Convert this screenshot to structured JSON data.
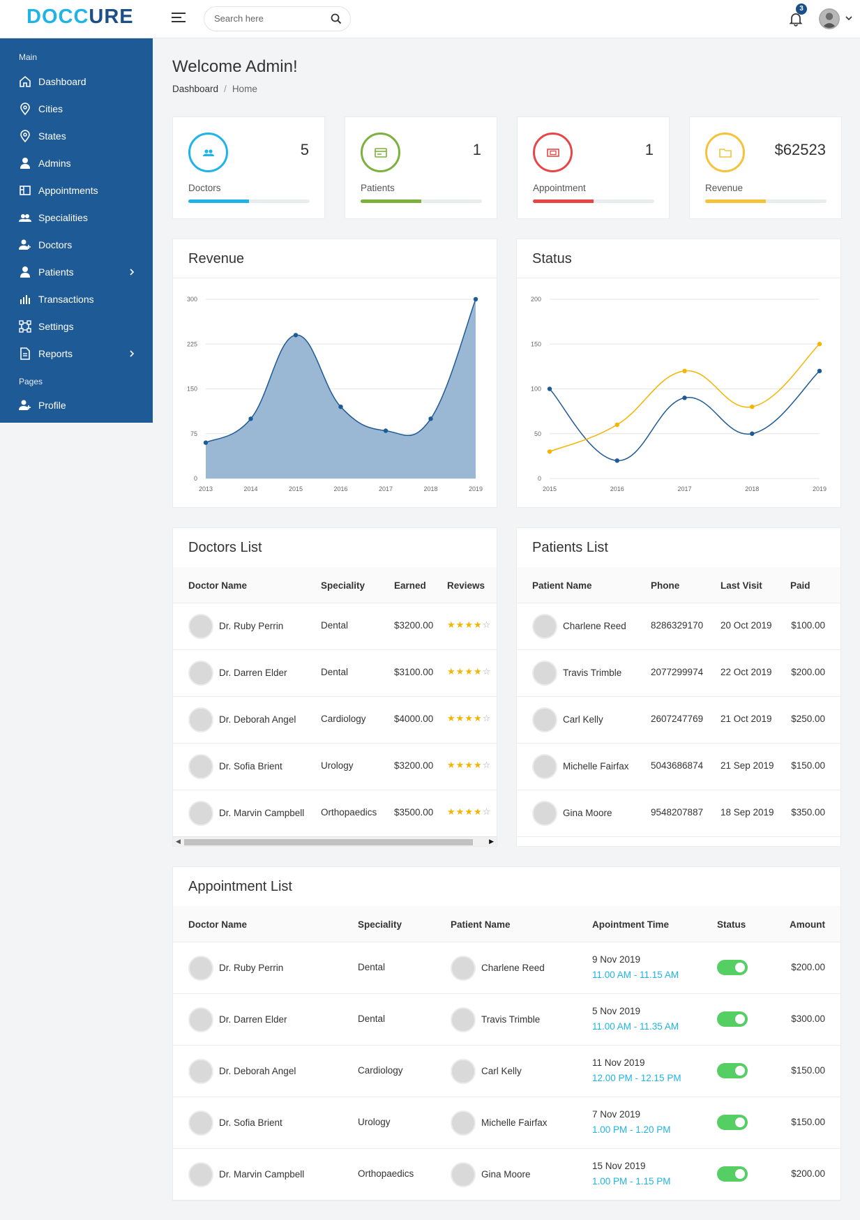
{
  "header": {
    "logo_part1": "DOCC",
    "logo_part2": "URE",
    "search_placeholder": "Search here",
    "notification_count": "3"
  },
  "sidebar": {
    "section_main": "Main",
    "section_pages": "Pages",
    "items": [
      {
        "label": "Dashboard",
        "icon": "home-icon"
      },
      {
        "label": "Cities",
        "icon": "map-pin-icon"
      },
      {
        "label": "States",
        "icon": "map-pin-icon"
      },
      {
        "label": "Admins",
        "icon": "user-icon"
      },
      {
        "label": "Appointments",
        "icon": "layout-icon"
      },
      {
        "label": "Specialities",
        "icon": "users-icon"
      },
      {
        "label": "Doctors",
        "icon": "user-plus-icon"
      },
      {
        "label": "Patients",
        "icon": "user-icon"
      },
      {
        "label": "Transactions",
        "icon": "bar-chart-icon"
      },
      {
        "label": "Settings",
        "icon": "frame-icon"
      },
      {
        "label": "Reports",
        "icon": "document-icon"
      }
    ],
    "profile_label": "Profile"
  },
  "page": {
    "title": "Welcome Admin!",
    "breadcrumb_1": "Dashboard",
    "breadcrumb_2": "Home"
  },
  "stats": [
    {
      "value": "5",
      "label": "Doctors",
      "color": "#1fb3e6",
      "progress": 0.5
    },
    {
      "value": "1",
      "label": "Patients",
      "color": "#7bb13c",
      "progress": 0.5
    },
    {
      "value": "1",
      "label": "Appointment",
      "color": "#e84646",
      "progress": 0.5
    },
    {
      "value": "$62523",
      "label": "Revenue",
      "color": "#f4c33b",
      "progress": 0.5
    }
  ],
  "revenue": {
    "title": "Revenue",
    "chart_data": {
      "type": "area",
      "x": [
        "2013",
        "2014",
        "2015",
        "2016",
        "2017",
        "2018",
        "2019"
      ],
      "values": [
        60,
        100,
        240,
        120,
        80,
        100,
        300
      ],
      "yticks": [
        "0",
        "75",
        "150",
        "225",
        "300"
      ],
      "ylim": [
        0,
        300
      ],
      "color": "#1e5a96",
      "fill": "#9ab7d3"
    }
  },
  "status": {
    "title": "Status",
    "chart_data": {
      "type": "line",
      "x": [
        "2015",
        "2016",
        "2017",
        "2018",
        "2019"
      ],
      "series": [
        {
          "values": [
            100,
            20,
            90,
            50,
            120
          ],
          "color": "#1e5a96"
        },
        {
          "values": [
            30,
            60,
            120,
            80,
            150
          ],
          "color": "#f4b400"
        }
      ],
      "yticks": [
        "0",
        "50",
        "100",
        "150",
        "200"
      ],
      "ylim": [
        0,
        200
      ]
    }
  },
  "doctors": {
    "title": "Doctors List",
    "headers": [
      "Doctor Name",
      "Speciality",
      "Earned",
      "Reviews"
    ],
    "rows": [
      {
        "name": "Dr. Ruby Perrin",
        "speciality": "Dental",
        "earned": "$3200.00",
        "rating": 4
      },
      {
        "name": "Dr. Darren Elder",
        "speciality": "Dental",
        "earned": "$3100.00",
        "rating": 4
      },
      {
        "name": "Dr. Deborah Angel",
        "speciality": "Cardiology",
        "earned": "$4000.00",
        "rating": 4
      },
      {
        "name": "Dr. Sofia Brient",
        "speciality": "Urology",
        "earned": "$3200.00",
        "rating": 4
      },
      {
        "name": "Dr. Marvin Campbell",
        "speciality": "Orthopaedics",
        "earned": "$3500.00",
        "rating": 4
      }
    ]
  },
  "patients": {
    "title": "Patients List",
    "headers": [
      "Patient Name",
      "Phone",
      "Last Visit",
      "Paid"
    ],
    "rows": [
      {
        "name": "Charlene Reed",
        "phone": "8286329170",
        "last_visit": "20 Oct 2019",
        "paid": "$100.00"
      },
      {
        "name": "Travis Trimble",
        "phone": "2077299974",
        "last_visit": "22 Oct 2019",
        "paid": "$200.00"
      },
      {
        "name": "Carl Kelly",
        "phone": "2607247769",
        "last_visit": "21 Oct 2019",
        "paid": "$250.00"
      },
      {
        "name": "Michelle Fairfax",
        "phone": "5043686874",
        "last_visit": "21 Sep 2019",
        "paid": "$150.00"
      },
      {
        "name": "Gina Moore",
        "phone": "9548207887",
        "last_visit": "18 Sep 2019",
        "paid": "$350.00"
      }
    ]
  },
  "appointments": {
    "title": "Appointment List",
    "headers": [
      "Doctor Name",
      "Speciality",
      "Patient Name",
      "Apointment Time",
      "Status",
      "Amount"
    ],
    "rows": [
      {
        "doctor": "Dr. Ruby Perrin",
        "speciality": "Dental",
        "patient": "Charlene Reed",
        "date": "9 Nov 2019",
        "time": "11.00 AM - 11.15 AM",
        "amount": "$200.00",
        "status_on": true
      },
      {
        "doctor": "Dr. Darren Elder",
        "speciality": "Dental",
        "patient": "Travis Trimble",
        "date": "5 Nov 2019",
        "time": "11.00 AM - 11.35 AM",
        "amount": "$300.00",
        "status_on": true
      },
      {
        "doctor": "Dr. Deborah Angel",
        "speciality": "Cardiology",
        "patient": "Carl Kelly",
        "date": "11 Nov 2019",
        "time": "12.00 PM - 12.15 PM",
        "amount": "$150.00",
        "status_on": true
      },
      {
        "doctor": "Dr. Sofia Brient",
        "speciality": "Urology",
        "patient": "Michelle Fairfax",
        "date": "7 Nov 2019",
        "time": "1.00 PM - 1.20 PM",
        "amount": "$150.00",
        "status_on": true
      },
      {
        "doctor": "Dr. Marvin Campbell",
        "speciality": "Orthopaedics",
        "patient": "Gina Moore",
        "date": "15 Nov 2019",
        "time": "1.00 PM - 1.15 PM",
        "amount": "$200.00",
        "status_on": true
      }
    ]
  }
}
